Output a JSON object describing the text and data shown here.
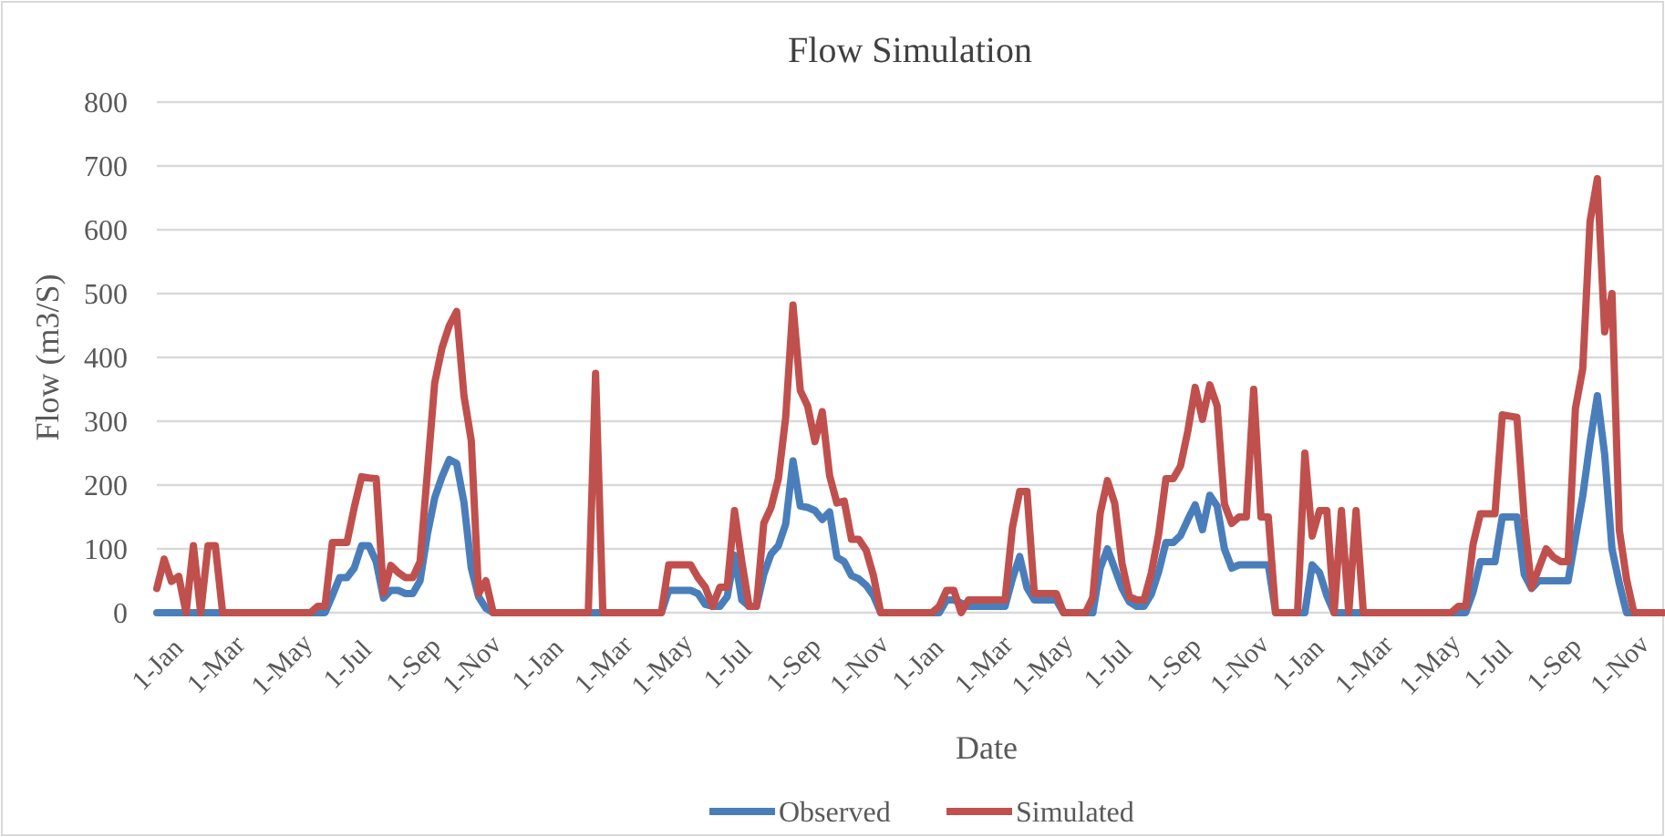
{
  "chart_data": {
    "type": "line",
    "title": "Flow Simulation",
    "xlabel": "Date",
    "ylabel": "Flow (m3/S)",
    "legend": "bottom",
    "grid": "y",
    "ylim": [
      0,
      800
    ],
    "yticks": [
      0,
      100,
      200,
      300,
      400,
      500,
      600,
      700,
      800
    ],
    "categories": [
      "1-Jan",
      null,
      null,
      null,
      null,
      null,
      null,
      null,
      "1-Mar",
      null,
      null,
      null,
      null,
      null,
      null,
      null,
      null,
      "1-May",
      null,
      null,
      null,
      null,
      null,
      null,
      null,
      null,
      "1-Jul",
      null,
      null,
      null,
      null,
      null,
      null,
      null,
      null,
      "1-Sep",
      null,
      null,
      null,
      null,
      null,
      null,
      null,
      "1-Nov",
      null,
      null,
      null,
      null,
      null,
      null,
      null,
      null,
      "1-Jan",
      null,
      null,
      null,
      null,
      null,
      null,
      null,
      null,
      "1-Mar",
      null,
      null,
      null,
      null,
      null,
      null,
      null,
      "1-May",
      null,
      null,
      null,
      null,
      null,
      null,
      null,
      null,
      "1-Jul",
      null,
      null,
      null,
      null,
      null,
      null,
      null,
      null,
      "1-Sep",
      null,
      null,
      null,
      null,
      null,
      null,
      null,
      null,
      "1-Nov",
      null,
      null,
      null,
      null,
      null,
      null,
      null,
      "1-Jan",
      null,
      null,
      null,
      null,
      null,
      null,
      null,
      null,
      "1-Mar",
      null,
      null,
      null,
      null,
      null,
      null,
      null,
      "1-May",
      null,
      null,
      null,
      null,
      null,
      null,
      null,
      null,
      "1-Jul",
      null,
      null,
      null,
      null,
      null,
      null,
      null,
      null,
      "1-Sep",
      null,
      null,
      null,
      null,
      null,
      null,
      null,
      null,
      "1-Nov",
      null,
      null,
      null,
      null,
      null,
      null,
      null,
      "1-Jan",
      null,
      null,
      null,
      null,
      null,
      null,
      null,
      null,
      "1-Mar",
      null,
      null,
      null,
      null,
      null,
      null,
      null,
      null,
      "1-May",
      null,
      null,
      null,
      null,
      null,
      null,
      null,
      "1-Jul",
      null,
      null,
      null,
      null,
      null,
      null,
      null,
      null,
      "1-Sep",
      null,
      null,
      null,
      null,
      null,
      null,
      null,
      null,
      "1-Nov",
      null,
      null,
      null,
      null,
      null,
      null
    ],
    "series": [
      {
        "name": "Observed",
        "color": "#4a7ebb",
        "values": [
          0,
          0,
          0,
          0,
          0,
          0,
          0,
          0,
          0,
          0,
          0,
          0,
          0,
          0,
          0,
          0,
          0,
          0,
          0,
          0,
          0,
          0,
          0,
          0,
          27,
          55,
          55,
          70,
          105,
          105,
          80,
          23,
          35,
          35,
          30,
          30,
          50,
          123,
          180,
          213,
          240,
          234,
          173,
          70,
          25,
          7,
          0,
          0,
          0,
          0,
          0,
          0,
          0,
          0,
          0,
          0,
          0,
          0,
          0,
          0,
          0,
          0,
          0,
          0,
          0,
          0,
          0,
          0,
          0,
          0,
          35,
          35,
          35,
          35,
          30,
          13,
          10,
          10,
          25,
          90,
          20,
          10,
          10,
          60,
          92,
          105,
          139,
          238,
          167,
          165,
          160,
          146,
          158,
          87,
          80,
          58,
          53,
          43,
          27,
          0,
          0,
          0,
          0,
          0,
          0,
          0,
          0,
          0,
          20,
          20,
          15,
          10,
          10,
          10,
          10,
          10,
          10,
          53,
          88,
          39,
          20,
          20,
          20,
          20,
          0,
          0,
          0,
          0,
          0,
          69,
          100,
          69,
          38,
          17,
          10,
          10,
          29,
          64,
          110,
          110,
          121,
          146,
          169,
          130,
          184,
          167,
          100,
          70,
          75,
          75,
          75,
          75,
          75,
          0,
          0,
          0,
          0,
          0,
          75,
          63,
          27,
          0,
          0,
          0,
          0,
          0,
          0,
          0,
          0,
          0,
          0,
          0,
          0,
          0,
          0,
          0,
          0,
          0,
          0,
          0,
          32,
          80,
          80,
          80,
          150,
          150,
          150,
          60,
          38,
          50,
          50,
          50,
          50,
          50,
          117,
          183,
          267,
          340,
          248,
          100,
          46,
          0,
          0,
          0,
          0,
          null,
          null
        ]
      },
      {
        "name": "Simulated",
        "color": "#c0504d",
        "values": [
          38,
          84,
          49,
          57,
          0,
          105,
          0,
          105,
          105,
          0,
          0,
          0,
          0,
          0,
          0,
          0,
          0,
          0,
          0,
          0,
          0,
          0,
          10,
          10,
          110,
          110,
          110,
          165,
          213,
          211,
          210,
          30,
          74,
          63,
          55,
          55,
          80,
          220,
          360,
          415,
          450,
          472,
          340,
          270,
          30,
          50,
          0,
          0,
          0,
          0,
          0,
          0,
          0,
          0,
          0,
          0,
          0,
          0,
          0,
          0,
          375,
          0,
          0,
          0,
          0,
          0,
          0,
          0,
          0,
          0,
          75,
          75,
          75,
          75,
          55,
          40,
          10,
          40,
          40,
          160,
          80,
          10,
          10,
          140,
          165,
          210,
          306,
          482,
          348,
          324,
          268,
          315,
          215,
          172,
          175,
          115,
          115,
          98,
          58,
          0,
          0,
          0,
          0,
          0,
          0,
          0,
          0,
          10,
          35,
          35,
          0,
          20,
          20,
          20,
          20,
          20,
          20,
          133,
          190,
          190,
          30,
          30,
          30,
          30,
          0,
          0,
          0,
          0,
          24,
          155,
          207,
          171,
          77,
          25,
          20,
          20,
          62,
          123,
          210,
          210,
          230,
          285,
          353,
          303,
          357,
          324,
          170,
          140,
          150,
          150,
          350,
          150,
          150,
          0,
          0,
          0,
          0,
          250,
          120,
          160,
          160,
          0,
          160,
          0,
          160,
          0,
          0,
          0,
          0,
          0,
          0,
          0,
          0,
          0,
          0,
          0,
          0,
          0,
          10,
          10,
          107,
          155,
          155,
          155,
          310,
          308,
          306,
          147,
          39,
          70,
          100,
          87,
          80,
          80,
          320,
          382,
          613,
          680,
          440,
          500,
          130,
          52,
          0,
          0,
          0,
          0,
          0
        ]
      }
    ]
  }
}
